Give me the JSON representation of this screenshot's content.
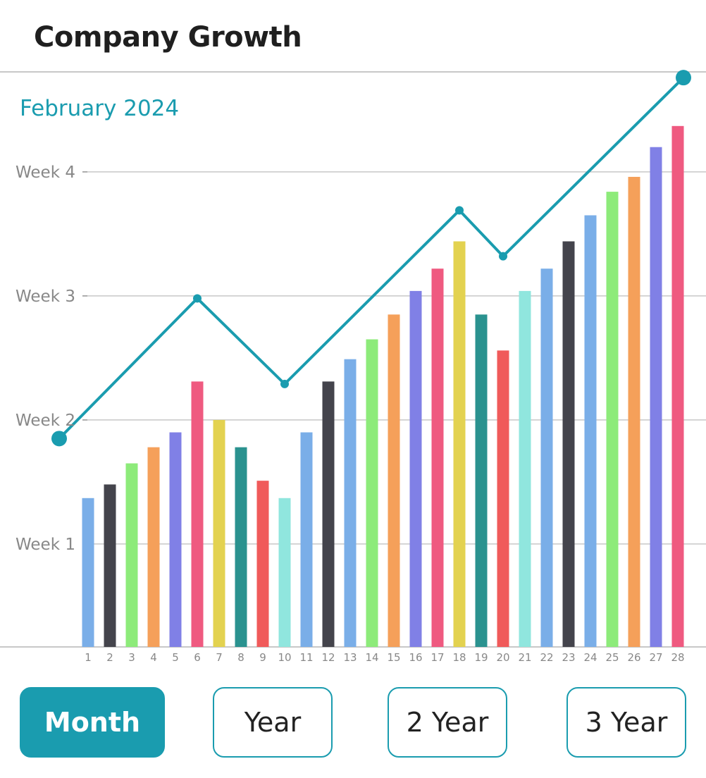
{
  "title": "Company Growth",
  "accent_color": "#1a9caf",
  "chart_data": {
    "type": "bar",
    "subtitle": "February 2024",
    "y_tick_labels": [
      "Week 1",
      "Week 2",
      "Week 3",
      "Week 4"
    ],
    "categories": [
      "1",
      "2",
      "3",
      "4",
      "5",
      "6",
      "7",
      "8",
      "9",
      "10",
      "11",
      "12",
      "13",
      "14",
      "15",
      "16",
      "17",
      "18",
      "19",
      "20",
      "21",
      "22",
      "23",
      "24",
      "25",
      "26",
      "27",
      "28"
    ],
    "series": [
      {
        "values": [
          1.37,
          1.48,
          1.65,
          1.78,
          1.9,
          2.31,
          2.0,
          1.78,
          1.51,
          1.37,
          1.9,
          2.31,
          2.49,
          2.65,
          2.85,
          3.04,
          3.22,
          3.44,
          2.85,
          2.56,
          3.04,
          3.22,
          3.44,
          3.65,
          3.84,
          3.96,
          4.2,
          4.37
        ]
      },
      {
        "type": "line",
        "points": [
          [
            1,
            1.85
          ],
          [
            6,
            2.98
          ],
          [
            10,
            2.29
          ],
          [
            18,
            3.69
          ],
          [
            20,
            3.32
          ],
          [
            28,
            4.76
          ]
        ]
      }
    ],
    "bar_colors": [
      "#7aaee8",
      "#44444c",
      "#8deb7a",
      "#f5a05a",
      "#8080e6",
      "#ef5a80",
      "#e3d250",
      "#2a928f",
      "#f05a5a",
      "#90e6de",
      "#7aaee8",
      "#44444c",
      "#7aaee8",
      "#8deb7a",
      "#f5a05a",
      "#8080e6",
      "#ef5a80",
      "#e3d250",
      "#2a928f",
      "#f05a5a",
      "#90e6de",
      "#7aaee8",
      "#44444c",
      "#7aaee8",
      "#8deb7a",
      "#f5a05a",
      "#8080e6",
      "#ef5a80"
    ],
    "line_color": "#1a9caf",
    "grid": true
  },
  "buttons": {
    "month": "Month",
    "year": "Year",
    "two_year": "2 Year",
    "three_year": "3 Year"
  },
  "active_button": "month"
}
